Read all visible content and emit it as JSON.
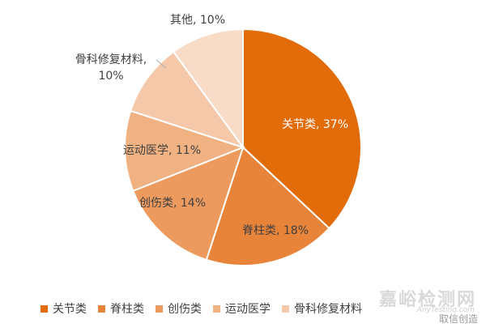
{
  "chart_data": {
    "type": "pie",
    "slices": [
      {
        "label": "关节类",
        "value": 37,
        "display": "关节类, 37%",
        "color": "#E36C0A"
      },
      {
        "label": "脊柱类",
        "value": 18,
        "display": "脊柱类, 18%",
        "color": "#E8833A"
      },
      {
        "label": "创伤类",
        "value": 14,
        "display": "创伤类, 14%",
        "color": "#EC9A5D"
      },
      {
        "label": "运动医学",
        "value": 11,
        "display": "运动医学, 11%",
        "color": "#F0B183"
      },
      {
        "label": "骨科修复材料",
        "value": 10,
        "display_line1": "骨科修复材料,",
        "display_line2": "10%",
        "color": "#F4C8A9"
      },
      {
        "label": "其他",
        "value": 10,
        "display": "其他, 10%",
        "color": "#F8DCC8"
      }
    ],
    "legend": [
      "关节类",
      "脊柱类",
      "创伤类",
      "运动医学",
      "骨科修复材料"
    ],
    "legend_placement": "bottom"
  },
  "watermark": {
    "cn": "嘉峪检测网",
    "en": "AnyTesting.com",
    "brand": "取信创造"
  }
}
